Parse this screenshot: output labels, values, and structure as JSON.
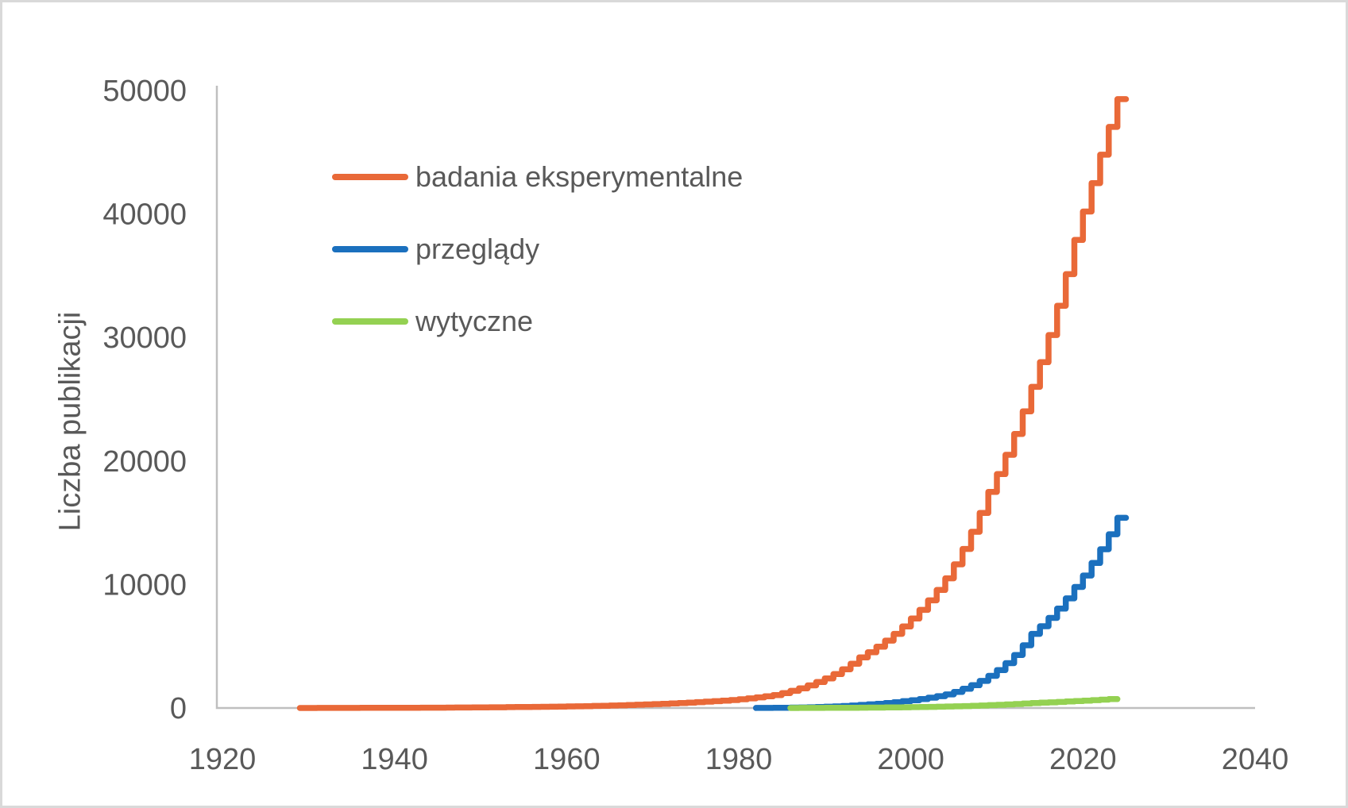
{
  "figure": {
    "background": "#FFFFFF",
    "border_color": "#D9D9D9",
    "text_color": "#595959",
    "axis_color": "#BFBFBF"
  },
  "chart_data": {
    "type": "line",
    "style": "cumulative-step",
    "title": "",
    "xlabel": "",
    "ylabel": "Liczba publikacji",
    "xlim": [
      1920,
      2040
    ],
    "ylim": [
      0,
      50000
    ],
    "x_ticks": [
      1920,
      1940,
      1960,
      1980,
      2000,
      2020,
      2040
    ],
    "y_ticks": [
      0,
      10000,
      20000,
      30000,
      40000,
      50000
    ],
    "grid": false,
    "legend_position": "inside-top-left",
    "series": [
      {
        "name": "badania eksperymentalne",
        "color": "#E96938",
        "start_year": 1929,
        "end_year": 2025,
        "values": [
          2,
          3,
          3,
          4,
          5,
          6,
          8,
          9,
          10,
          12,
          13,
          15,
          17,
          18,
          20,
          23,
          25,
          28,
          32,
          36,
          40,
          45,
          50,
          55,
          61,
          68,
          75,
          82,
          89,
          97,
          106,
          115,
          126,
          138,
          151,
          165,
          180,
          198,
          218,
          240,
          264,
          290,
          315,
          343,
          372,
          405,
          440,
          474,
          511,
          551,
          594,
          640,
          707,
          780,
          861,
          951,
          1050,
          1206,
          1386,
          1592,
          1829,
          2100,
          2400,
          2744,
          3136,
          3586,
          4100,
          4510,
          4962,
          5459,
          6005,
          6600,
          7240,
          7943,
          8713,
          9558,
          10500,
          11630,
          12880,
          14270,
          15800,
          17500,
          18940,
          20500,
          22190,
          24020,
          26000,
          28000,
          30200,
          32570,
          35130,
          37900,
          40200,
          42500,
          44800,
          47050,
          49300
        ]
      },
      {
        "name": "przeglądy",
        "color": "#1B70BE",
        "start_year": 1982,
        "end_year": 2025,
        "values": [
          3,
          5,
          9,
          15,
          21,
          29,
          41,
          57,
          80,
          100,
          126,
          158,
          199,
          250,
          293,
          343,
          401,
          470,
          550,
          632,
          726,
          834,
          958,
          1100,
          1307,
          1553,
          1845,
          2192,
          2600,
          3073,
          3633,
          4294,
          5076,
          6000,
          6617,
          7297,
          8048,
          8876,
          9800,
          10727,
          11742,
          12853,
          14070,
          15400
        ]
      },
      {
        "name": "wytyczne",
        "color": "#94D152",
        "start_year": 1986,
        "end_year": 2024,
        "values": [
          2,
          3,
          4,
          6,
          8,
          10,
          13,
          16,
          20,
          25,
          30,
          35,
          42,
          50,
          60,
          69,
          79,
          91,
          104,
          120,
          137,
          156,
          177,
          202,
          230,
          257,
          287,
          321,
          358,
          400,
          428,
          458,
          490,
          524,
          560,
          596,
          635,
          676,
          720
        ]
      }
    ]
  }
}
